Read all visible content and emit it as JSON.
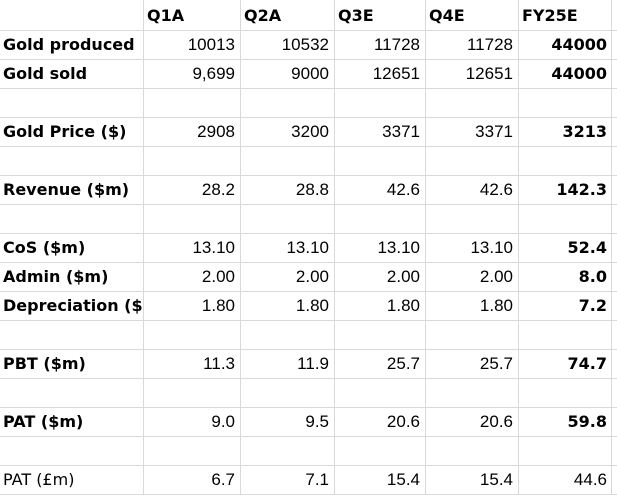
{
  "headers": [
    "Q1A",
    "Q2A",
    "Q3E",
    "Q4E",
    "FY25E"
  ],
  "rows": [
    {
      "label": "Gold produced",
      "values": [
        "10013",
        "10532",
        "11728",
        "11728",
        "44000"
      ]
    },
    {
      "label": "Gold sold",
      "values": [
        "9,699",
        "9000",
        "12651",
        "12651",
        "44000"
      ]
    },
    {
      "label": "Gold Price ($)",
      "values": [
        "2908",
        "3200",
        "3371",
        "3371",
        "3213"
      ]
    },
    {
      "label": "Revenue ($m)",
      "values": [
        "28.2",
        "28.8",
        "42.6",
        "42.6",
        "142.3"
      ]
    },
    {
      "label": "CoS ($m)",
      "values": [
        "13.10",
        "13.10",
        "13.10",
        "13.10",
        "52.4"
      ]
    },
    {
      "label": "Admin ($m)",
      "values": [
        "2.00",
        "2.00",
        "2.00",
        "2.00",
        "8.0"
      ]
    },
    {
      "label": "Depreciation ($m)",
      "values": [
        "1.80",
        "1.80",
        "1.80",
        "1.80",
        "7.2"
      ]
    },
    {
      "label": "PBT ($m)",
      "values": [
        "11.3",
        "11.9",
        "25.7",
        "25.7",
        "74.7"
      ]
    },
    {
      "label": "PAT ($m)",
      "values": [
        "9.0",
        "9.5",
        "20.6",
        "20.6",
        "59.8"
      ]
    },
    {
      "label": "PAT (£m)",
      "values": [
        "6.7",
        "7.1",
        "15.4",
        "15.4",
        "44.6"
      ]
    }
  ]
}
